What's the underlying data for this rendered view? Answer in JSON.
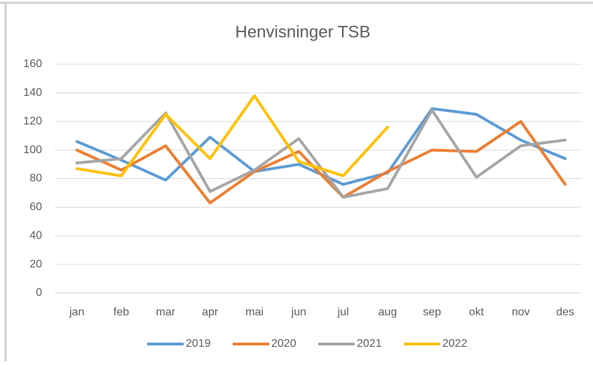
{
  "chart_data": {
    "type": "line",
    "title": "Henvisninger TSB",
    "categories": [
      "jan",
      "feb",
      "mar",
      "apr",
      "mai",
      "jun",
      "jul",
      "aug",
      "sep",
      "okt",
      "nov",
      "des"
    ],
    "series": [
      {
        "name": "2019",
        "color": "#5b9bd5",
        "values": [
          106,
          93,
          79,
          109,
          85,
          90,
          76,
          84,
          129,
          125,
          107,
          94
        ]
      },
      {
        "name": "2020",
        "color": "#ed7d31",
        "values": [
          100,
          86,
          103,
          63,
          85,
          99,
          67,
          85,
          100,
          99,
          120,
          76
        ]
      },
      {
        "name": "2021",
        "color": "#a5a5a5",
        "values": [
          91,
          94,
          126,
          71,
          86,
          108,
          67,
          73,
          128,
          81,
          103,
          107
        ]
      },
      {
        "name": "2022",
        "color": "#ffc000",
        "values": [
          87,
          82,
          125,
          94,
          138,
          92,
          82,
          116,
          null,
          null,
          null,
          null
        ]
      }
    ],
    "ylim": [
      0,
      160
    ],
    "yticks": [
      0,
      20,
      40,
      60,
      80,
      100,
      120,
      140,
      160
    ],
    "grid": true,
    "legend": "bottom"
  }
}
